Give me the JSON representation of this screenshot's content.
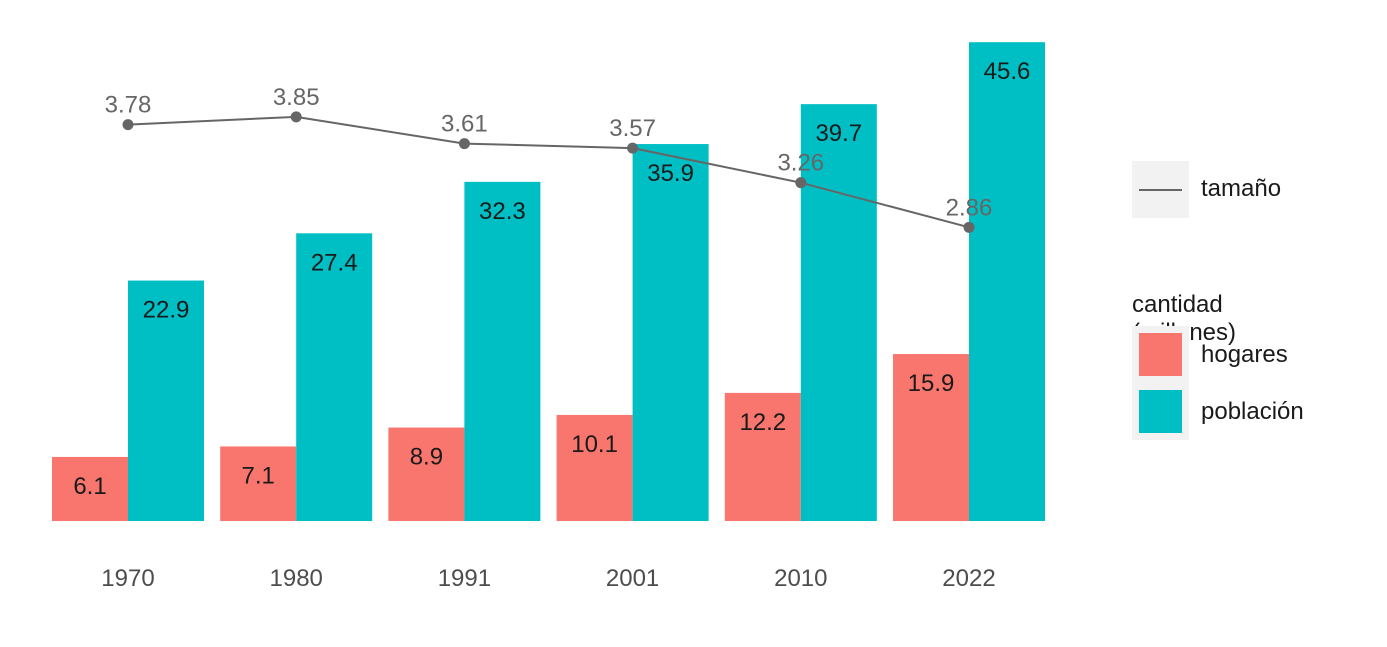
{
  "chart_data": {
    "type": "bar",
    "categories": [
      "1970",
      "1980",
      "1991",
      "2001",
      "2010",
      "2022"
    ],
    "series": [
      {
        "name": "hogares",
        "values": [
          6.1,
          7.1,
          8.9,
          10.1,
          12.2,
          15.9
        ],
        "color": "#f8766d"
      },
      {
        "name": "población",
        "values": [
          22.9,
          27.4,
          32.3,
          35.9,
          39.7,
          45.6
        ],
        "color": "#00bfc4"
      }
    ],
    "line_series": {
      "name": "tamaño",
      "values": [
        3.78,
        3.85,
        3.61,
        3.57,
        3.26,
        2.86
      ],
      "color": "#666666"
    },
    "legend": {
      "bar_title": "cantidad (millones)",
      "placement": "right"
    },
    "title": "",
    "xlabel": "",
    "ylabel": "",
    "grid": false,
    "bar_label_color": "#1a1a1a",
    "line_label_color": "#666666",
    "tick_label_color": "#4d4d4d"
  }
}
